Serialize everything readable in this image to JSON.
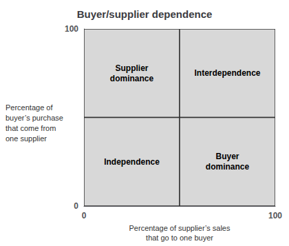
{
  "chart_data": {
    "type": "quadrant",
    "title": "Buyer/supplier dependence",
    "x_label": "Percentage of supplier’s sales\nthat go to one buyer",
    "y_label": "Percentage of\nbuyer’s purchase\nthat come from\none supplier",
    "quadrants": [
      {
        "text": "Supplier\ndominance",
        "x": 25,
        "y": 75,
        "xrange": [
          0,
          50
        ],
        "yrange": [
          50,
          100
        ]
      },
      {
        "text": "Interdependence",
        "x": 75,
        "y": 75,
        "xrange": [
          50,
          100
        ],
        "yrange": [
          50,
          100
        ]
      },
      {
        "text": "Independence",
        "x": 25,
        "y": 25,
        "xrange": [
          0,
          50
        ],
        "yrange": [
          0,
          50
        ]
      },
      {
        "text": "Buyer\ndominance",
        "x": 75,
        "y": 25,
        "xrange": [
          50,
          100
        ],
        "yrange": [
          0,
          50
        ]
      }
    ],
    "color": "#d8d8d8",
    "xlim": [
      0,
      100
    ],
    "ylim": [
      0,
      100
    ],
    "xticks": [
      0,
      100
    ],
    "yticks": [
      0,
      100
    ],
    "grid": false
  }
}
